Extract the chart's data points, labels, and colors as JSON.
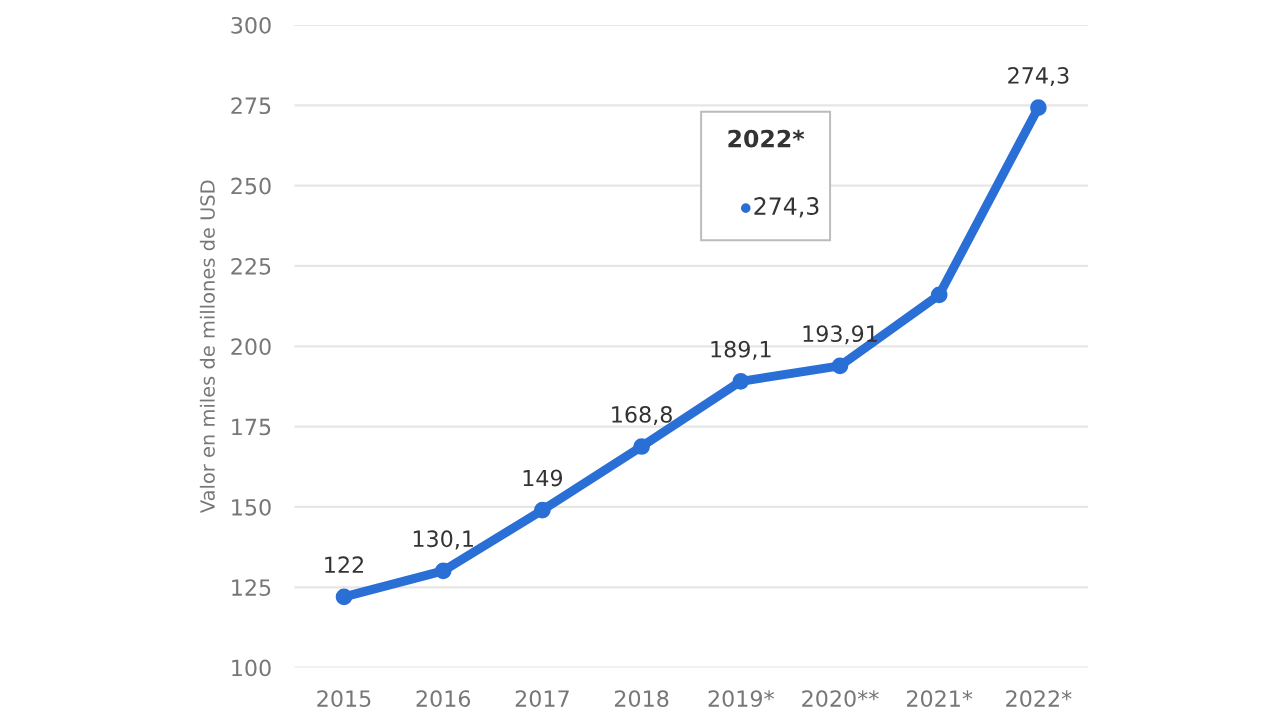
{
  "chart_data": {
    "type": "line",
    "ylabel": "Valor en miles de millones de USD",
    "categories": [
      "2015",
      "2016",
      "2017",
      "2018",
      "2019*",
      "2020**",
      "2021*",
      "2022*"
    ],
    "series": [
      {
        "color": "#2a6fd6",
        "values": [
          122,
          130.1,
          149,
          168.8,
          189.1,
          193.91,
          216,
          274.3
        ],
        "value_labels": [
          "122",
          "130,1",
          "149",
          "168,8",
          "189,1",
          "193,91",
          null,
          "274,3"
        ]
      }
    ],
    "ylim": [
      100,
      300
    ],
    "yticks": [
      100,
      125,
      150,
      175,
      200,
      225,
      250,
      275,
      300
    ],
    "grid": "y",
    "marker": "circle",
    "line_style": "solid",
    "annotations": [
      "2022*",
      "274,3"
    ]
  }
}
